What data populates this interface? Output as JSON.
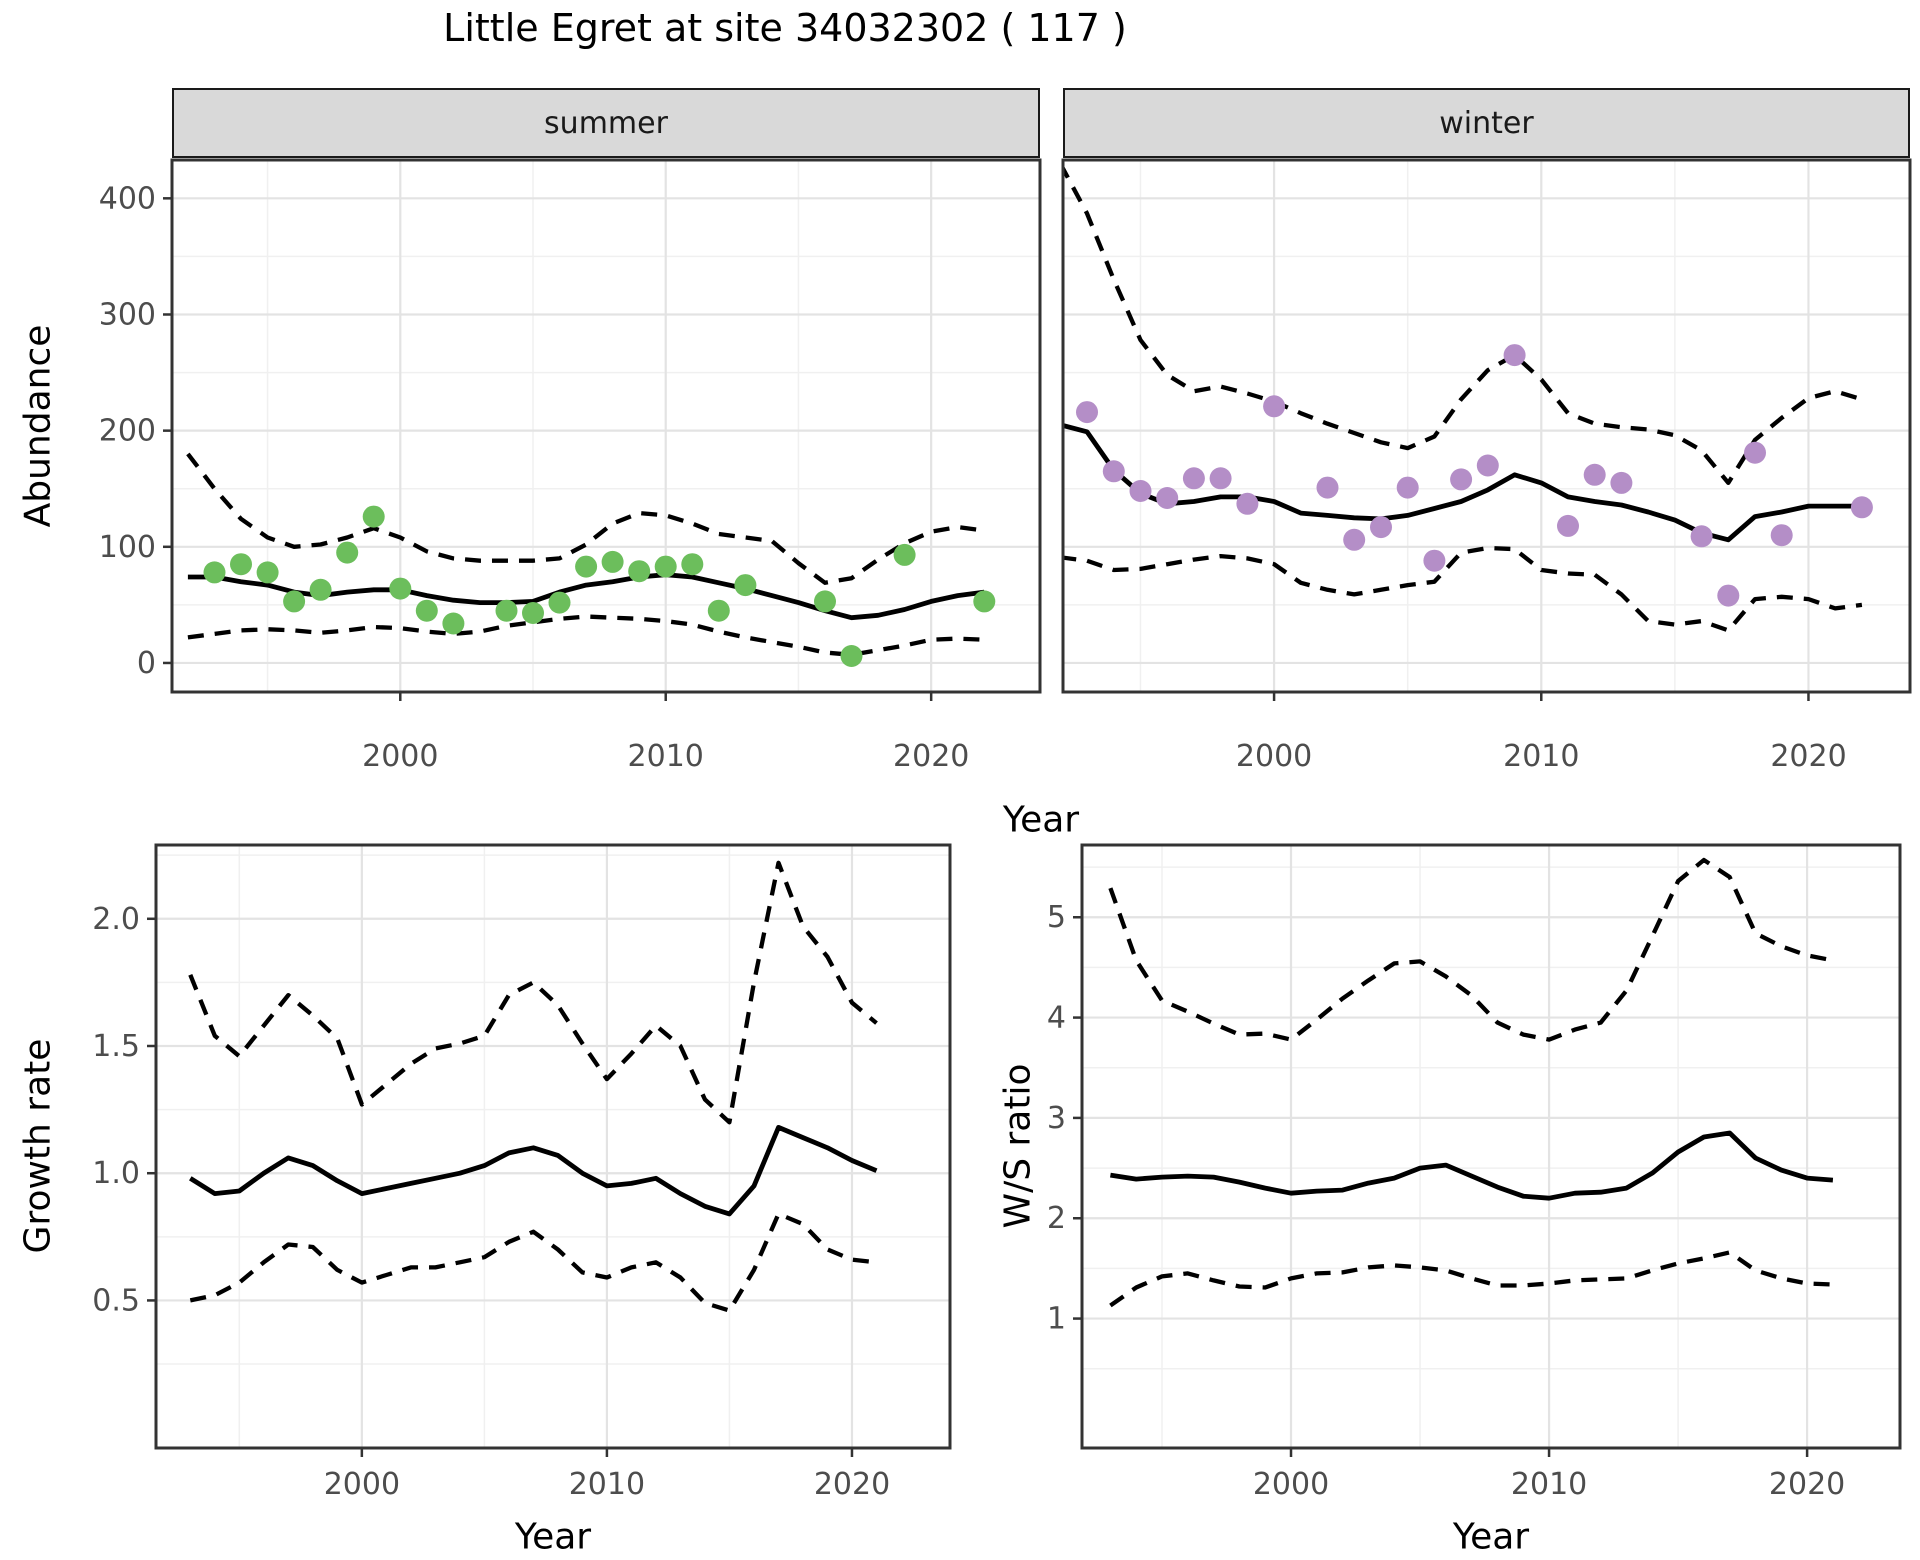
{
  "title": "Little Egret at site 34032302 ( 117 )",
  "axes": {
    "x_label": "Year",
    "abundance_label": "Abundance",
    "growth_label": "Growth rate",
    "ws_label": "W/S ratio"
  },
  "facets": [
    {
      "label": "summer"
    },
    {
      "label": "winter"
    }
  ],
  "colors": {
    "summer_point": "#6CBE5C",
    "winter_point": "#B48EC7",
    "fit_line": "#000000",
    "ci_line": "#000000",
    "strip_bg": "#D9D9D9",
    "grid_major": "#E3E3E3",
    "grid_minor": "#F0F0F0",
    "panel_border": "#333333",
    "tick_label": "#4D4D4D"
  },
  "chart_data": [
    {
      "id": "abundance-summer",
      "type": "line",
      "facet": "summer",
      "ylabel": "Abundance",
      "xlabel": "Year",
      "xlim": [
        1991.4,
        2024.1
      ],
      "ylim": [
        -25,
        433
      ],
      "x_ticks": [
        2000,
        2010,
        2020
      ],
      "x_tick_labels": [
        "2000",
        "2010",
        "2020"
      ],
      "x_minor": [
        1995,
        2005,
        2015
      ],
      "y_ticks": [
        0,
        100,
        200,
        300,
        400
      ],
      "y_tick_labels": [
        "0",
        "100",
        "200",
        "300",
        "400"
      ],
      "y_minor": [
        50,
        150,
        250,
        350
      ],
      "grid": true,
      "legend": "none",
      "line_x": [
        1992,
        1993,
        1994,
        1995,
        1996,
        1997,
        1998,
        1999,
        2000,
        2001,
        2002,
        2003,
        2004,
        2005,
        2006,
        2007,
        2008,
        2009,
        2010,
        2011,
        2012,
        2013,
        2014,
        2015,
        2016,
        2017,
        2018,
        2019,
        2020,
        2021,
        2022
      ],
      "series": [
        {
          "name": "fit",
          "style": "solid",
          "y": [
            74,
            74,
            70,
            67,
            61,
            58,
            61,
            63,
            63,
            58,
            54,
            52,
            52,
            53,
            61,
            67,
            70,
            74,
            76,
            74,
            69,
            64,
            58,
            52,
            45,
            39,
            41,
            46,
            53,
            58,
            61
          ]
        },
        {
          "name": "upper_ci",
          "style": "dashed",
          "y": [
            180,
            150,
            124,
            108,
            100,
            102,
            108,
            116,
            108,
            96,
            90,
            88,
            88,
            88,
            90,
            102,
            120,
            129,
            127,
            120,
            111,
            108,
            105,
            86,
            69,
            73,
            89,
            103,
            113,
            117,
            114
          ]
        },
        {
          "name": "lower_ci",
          "style": "dashed",
          "y": [
            22,
            25,
            28,
            29,
            28,
            26,
            28,
            31,
            30,
            27,
            25,
            27,
            32,
            35,
            38,
            40,
            39,
            38,
            36,
            33,
            27,
            22,
            18,
            14,
            9,
            7,
            11,
            15,
            20,
            21,
            20
          ]
        },
        {
          "name": "observed",
          "style": "points",
          "color": "#6CBE5C",
          "x": [
            1993,
            1994,
            1995,
            1996,
            1997,
            1998,
            1999,
            2000,
            2001,
            2002,
            2004,
            2005,
            2006,
            2007,
            2008,
            2009,
            2010,
            2011,
            2012,
            2013,
            2016,
            2017,
            2019,
            2022
          ],
          "y": [
            78,
            85,
            78,
            53,
            63,
            95,
            126,
            64,
            45,
            34,
            45,
            43,
            52,
            83,
            87,
            79,
            83,
            85,
            45,
            67,
            53,
            6,
            93,
            53
          ]
        }
      ]
    },
    {
      "id": "abundance-winter",
      "type": "line",
      "facet": "winter",
      "ylabel": "Abundance",
      "xlabel": "Year",
      "xlim": [
        1992.1,
        2023.8
      ],
      "ylim": [
        -25,
        433
      ],
      "x_ticks": [
        2000,
        2010,
        2020
      ],
      "x_tick_labels": [
        "2000",
        "2010",
        "2020"
      ],
      "x_minor": [
        1995,
        2005,
        2015
      ],
      "y_ticks": [
        0,
        100,
        200,
        300,
        400
      ],
      "y_tick_labels": [
        "0",
        "100",
        "200",
        "300",
        "400"
      ],
      "y_minor": [
        50,
        150,
        250,
        350
      ],
      "grid": true,
      "legend": "none",
      "line_x": [
        1992,
        1993,
        1994,
        1995,
        1996,
        1997,
        1998,
        1999,
        2000,
        2001,
        2002,
        2003,
        2004,
        2005,
        2006,
        2007,
        2008,
        2009,
        2010,
        2011,
        2012,
        2013,
        2014,
        2015,
        2016,
        2017,
        2018,
        2019,
        2020,
        2021,
        2022
      ],
      "series": [
        {
          "name": "fit",
          "style": "solid",
          "y": [
            205,
            199,
            166,
            146,
            137,
            139,
            143,
            143,
            139,
            129,
            127,
            125,
            124,
            127,
            133,
            139,
            149,
            162,
            155,
            143,
            139,
            136,
            130,
            123,
            112,
            106,
            126,
            130,
            135,
            135,
            135
          ]
        },
        {
          "name": "upper_ci",
          "style": "dashed",
          "y": [
            430,
            387,
            330,
            278,
            248,
            234,
            238,
            232,
            225,
            215,
            206,
            198,
            190,
            185,
            195,
            227,
            252,
            265,
            244,
            215,
            206,
            203,
            201,
            196,
            183,
            155,
            192,
            211,
            228,
            234,
            227
          ]
        },
        {
          "name": "lower_ci",
          "style": "dashed",
          "y": [
            91,
            88,
            80,
            81,
            85,
            89,
            92,
            90,
            85,
            69,
            63,
            59,
            63,
            67,
            70,
            95,
            99,
            98,
            80,
            77,
            76,
            59,
            36,
            33,
            36,
            28,
            55,
            57,
            55,
            47,
            50
          ]
        },
        {
          "name": "observed",
          "style": "points",
          "color": "#B48EC7",
          "x": [
            1993,
            1994,
            1995,
            1996,
            1997,
            1998,
            1999,
            2000,
            2002,
            2003,
            2004,
            2005,
            2006,
            2007,
            2008,
            2009,
            2011,
            2012,
            2013,
            2016,
            2017,
            2018,
            2019,
            2022
          ],
          "y": [
            216,
            165,
            148,
            142,
            159,
            159,
            137,
            221,
            151,
            106,
            117,
            151,
            88,
            158,
            170,
            265,
            118,
            162,
            155,
            109,
            58,
            181,
            110,
            134
          ]
        }
      ]
    },
    {
      "id": "growth-rate",
      "type": "line",
      "facet": null,
      "ylabel": "Growth rate",
      "xlabel": "Year",
      "xlim": [
        1991.6,
        2024.0
      ],
      "ylim": [
        -0.08,
        2.29
      ],
      "x_ticks": [
        2000,
        2010,
        2020
      ],
      "x_tick_labels": [
        "2000",
        "2010",
        "2020"
      ],
      "x_minor": [
        1995,
        2005,
        2015
      ],
      "y_ticks": [
        0.5,
        1.0,
        1.5,
        2.0
      ],
      "y_tick_labels": [
        "0.5",
        "1.0",
        "1.5",
        "2.0"
      ],
      "y_minor": [
        0.25,
        0.75,
        1.25,
        1.75,
        2.25
      ],
      "grid": true,
      "legend": "none",
      "line_x": [
        1993,
        1994,
        1995,
        1996,
        1997,
        1998,
        1999,
        2000,
        2001,
        2002,
        2003,
        2004,
        2005,
        2006,
        2007,
        2008,
        2009,
        2010,
        2011,
        2012,
        2013,
        2014,
        2015,
        2016,
        2017,
        2018,
        2019,
        2020,
        2021
      ],
      "series": [
        {
          "name": "fit",
          "style": "solid",
          "y": [
            0.98,
            0.92,
            0.93,
            1.0,
            1.06,
            1.03,
            0.97,
            0.92,
            0.94,
            0.96,
            0.98,
            1.0,
            1.03,
            1.08,
            1.1,
            1.07,
            1.0,
            0.95,
            0.96,
            0.98,
            0.92,
            0.87,
            0.84,
            0.95,
            1.18,
            1.14,
            1.1,
            1.05,
            1.01
          ]
        },
        {
          "name": "upper_ci",
          "style": "dashed",
          "y": [
            1.78,
            1.54,
            1.46,
            1.58,
            1.7,
            1.62,
            1.53,
            1.27,
            1.35,
            1.43,
            1.49,
            1.51,
            1.54,
            1.7,
            1.75,
            1.66,
            1.51,
            1.37,
            1.47,
            1.58,
            1.5,
            1.29,
            1.2,
            1.75,
            2.22,
            1.97,
            1.85,
            1.67,
            1.59
          ]
        },
        {
          "name": "lower_ci",
          "style": "dashed",
          "y": [
            0.5,
            0.52,
            0.57,
            0.65,
            0.72,
            0.71,
            0.62,
            0.57,
            0.6,
            0.63,
            0.63,
            0.65,
            0.67,
            0.73,
            0.77,
            0.7,
            0.61,
            0.59,
            0.63,
            0.65,
            0.59,
            0.49,
            0.46,
            0.62,
            0.84,
            0.8,
            0.7,
            0.66,
            0.65
          ]
        }
      ]
    },
    {
      "id": "ws-ratio",
      "type": "line",
      "facet": null,
      "ylabel": "W/S ratio",
      "xlabel": "Year",
      "xlim": [
        1991.9,
        2023.6
      ],
      "ylim": [
        -0.29,
        5.72
      ],
      "x_ticks": [
        2000,
        2010,
        2020
      ],
      "x_tick_labels": [
        "2000",
        "2010",
        "2020"
      ],
      "x_minor": [
        1995,
        2005,
        2015
      ],
      "y_ticks": [
        1,
        2,
        3,
        4,
        5
      ],
      "y_tick_labels": [
        "1",
        "2",
        "3",
        "4",
        "5"
      ],
      "y_minor": [
        0.5,
        1.5,
        2.5,
        3.5,
        4.5,
        5.5
      ],
      "grid": true,
      "legend": "none",
      "line_x": [
        1993,
        1994,
        1995,
        1996,
        1997,
        1998,
        1999,
        2000,
        2001,
        2002,
        2003,
        2004,
        2005,
        2006,
        2007,
        2008,
        2009,
        2010,
        2011,
        2012,
        2013,
        2014,
        2015,
        2016,
        2017,
        2018,
        2019,
        2020,
        2021
      ],
      "series": [
        {
          "name": "fit",
          "style": "solid",
          "y": [
            2.43,
            2.39,
            2.41,
            2.42,
            2.41,
            2.36,
            2.3,
            2.25,
            2.27,
            2.28,
            2.35,
            2.4,
            2.5,
            2.53,
            2.42,
            2.31,
            2.22,
            2.2,
            2.25,
            2.26,
            2.3,
            2.45,
            2.66,
            2.81,
            2.85,
            2.6,
            2.48,
            2.4,
            2.38
          ]
        },
        {
          "name": "upper_ci",
          "style": "dashed",
          "y": [
            5.29,
            4.57,
            4.17,
            4.06,
            3.94,
            3.83,
            3.84,
            3.78,
            3.98,
            4.19,
            4.37,
            4.54,
            4.56,
            4.41,
            4.22,
            3.95,
            3.83,
            3.78,
            3.88,
            3.95,
            4.27,
            4.81,
            5.36,
            5.57,
            5.4,
            4.84,
            4.71,
            4.62,
            4.57
          ]
        },
        {
          "name": "lower_ci",
          "style": "dashed",
          "y": [
            1.13,
            1.31,
            1.42,
            1.45,
            1.38,
            1.32,
            1.31,
            1.4,
            1.45,
            1.46,
            1.51,
            1.53,
            1.51,
            1.48,
            1.4,
            1.33,
            1.33,
            1.35,
            1.38,
            1.39,
            1.4,
            1.48,
            1.55,
            1.6,
            1.66,
            1.48,
            1.4,
            1.35,
            1.34
          ]
        }
      ]
    }
  ]
}
